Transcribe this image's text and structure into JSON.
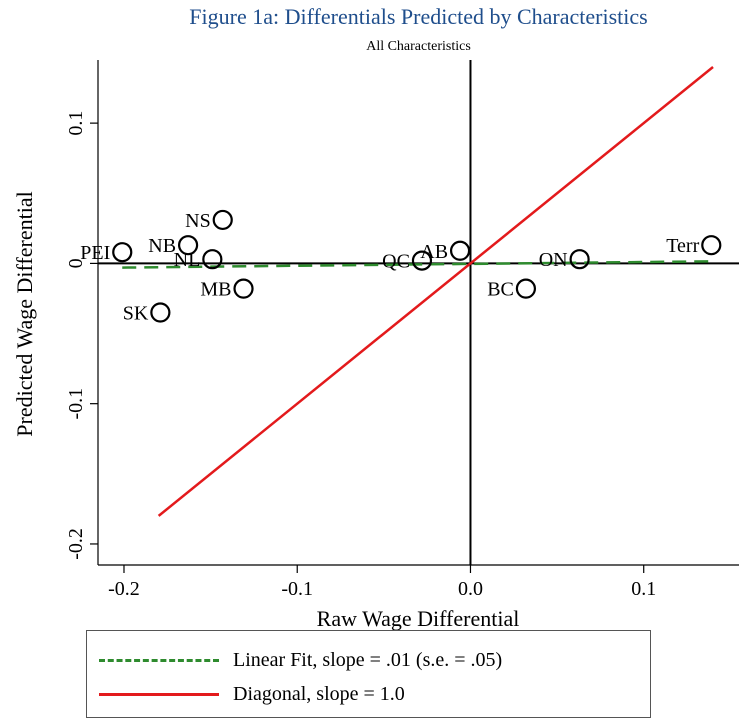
{
  "title": "Figure 1a: Differentials Predicted by Characteristics",
  "subtitle": "All Characteristics",
  "chart_data": {
    "type": "scatter",
    "xlabel": "Raw Wage Differential",
    "ylabel": "Predicted Wage Differential",
    "xlim": [
      -0.215,
      0.155
    ],
    "ylim": [
      -0.215,
      0.145
    ],
    "xticks": [
      -0.2,
      -0.1,
      0.0,
      0.1
    ],
    "xtick_labels": [
      "-0.2",
      "-0.1",
      "0.0",
      "0.1"
    ],
    "yticks": [
      -0.2,
      -0.1,
      0,
      0.1
    ],
    "ytick_labels": [
      "-0.2",
      "-0.1",
      "0",
      "0.1"
    ],
    "grid": false,
    "points": [
      {
        "label": "PEI",
        "x": -0.201,
        "y": 0.008
      },
      {
        "label": "NB",
        "x": -0.163,
        "y": 0.013
      },
      {
        "label": "NS",
        "x": -0.143,
        "y": 0.031
      },
      {
        "label": "NL",
        "x": -0.149,
        "y": 0.003
      },
      {
        "label": "MB",
        "x": -0.131,
        "y": -0.018
      },
      {
        "label": "SK",
        "x": -0.179,
        "y": -0.035
      },
      {
        "label": "QC",
        "x": -0.028,
        "y": 0.002
      },
      {
        "label": "AB",
        "x": -0.006,
        "y": 0.009
      },
      {
        "label": "BC",
        "x": 0.032,
        "y": -0.018
      },
      {
        "label": "ON",
        "x": 0.063,
        "y": 0.003
      },
      {
        "label": "Terr",
        "x": 0.139,
        "y": 0.013
      }
    ],
    "lines": [
      {
        "name": "Linear Fit, slope = .01 (s.e. = .05)",
        "style": "dashed",
        "color": "#2e8b2e",
        "x": [
          -0.201,
          0.139
        ],
        "y": [
          -0.003,
          0.0015
        ]
      },
      {
        "name": "Diagonal, slope = 1.0",
        "style": "solid",
        "color": "#e31a1c",
        "x": [
          -0.18,
          0.14
        ],
        "y": [
          -0.18,
          0.14
        ]
      }
    ],
    "legend_position": "bottom"
  }
}
